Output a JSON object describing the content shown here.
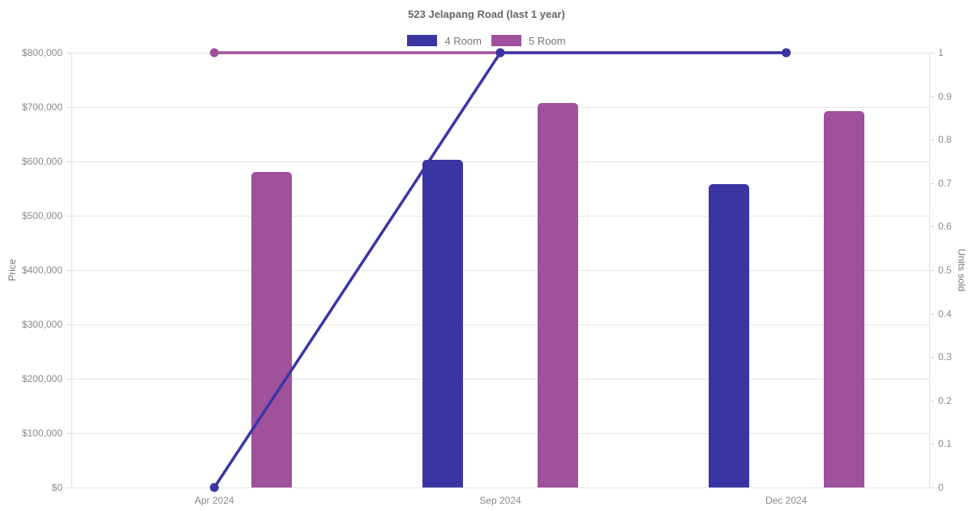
{
  "chart_data": {
    "type": "bar",
    "subtype": "grouped bars (left price axis) + line markers (right units-sold axis)",
    "title": "523 Jelapang Road (last 1 year)",
    "categories": [
      "Apr 2024",
      "Sep 2024",
      "Dec 2024"
    ],
    "bar_series": [
      {
        "name": "4 Room",
        "color": "#3B35A4",
        "axis": "left",
        "values": [
          null,
          603000,
          558000
        ]
      },
      {
        "name": "5 Room",
        "color": "#A0519C",
        "axis": "left",
        "values": [
          580000,
          707000,
          692000
        ]
      }
    ],
    "line_series": [
      {
        "name": "5 Room",
        "color": "#A0519C",
        "axis": "right",
        "values": [
          1,
          1,
          1
        ]
      },
      {
        "name": "4 Room",
        "color": "#3B35A4",
        "axis": "right",
        "values": [
          0,
          1,
          1
        ]
      }
    ],
    "legend": [
      {
        "label": "4 Room",
        "color": "#3B35A4"
      },
      {
        "label": "5 Room",
        "color": "#A0519C"
      }
    ],
    "legend_position": "top",
    "grid": true,
    "left_axis": {
      "label": "Price",
      "min": 0,
      "max": 800000,
      "ticks": [
        "$0",
        "$100,000",
        "$200,000",
        "$300,000",
        "$400,000",
        "$500,000",
        "$600,000",
        "$700,000",
        "$800,000"
      ]
    },
    "right_axis": {
      "label": "Units sold",
      "min": 0,
      "max": 1,
      "ticks": [
        "0",
        "0.1",
        "0.2",
        "0.3",
        "0.4",
        "0.5",
        "0.6",
        "0.7",
        "0.8",
        "0.9",
        "1"
      ]
    },
    "colors": {
      "background": "#FFFFFF",
      "grid": "#E7E7E7",
      "axis_line": "#E0E0E0",
      "tick_text": "#8A8A8A",
      "title_text": "#666666"
    }
  }
}
